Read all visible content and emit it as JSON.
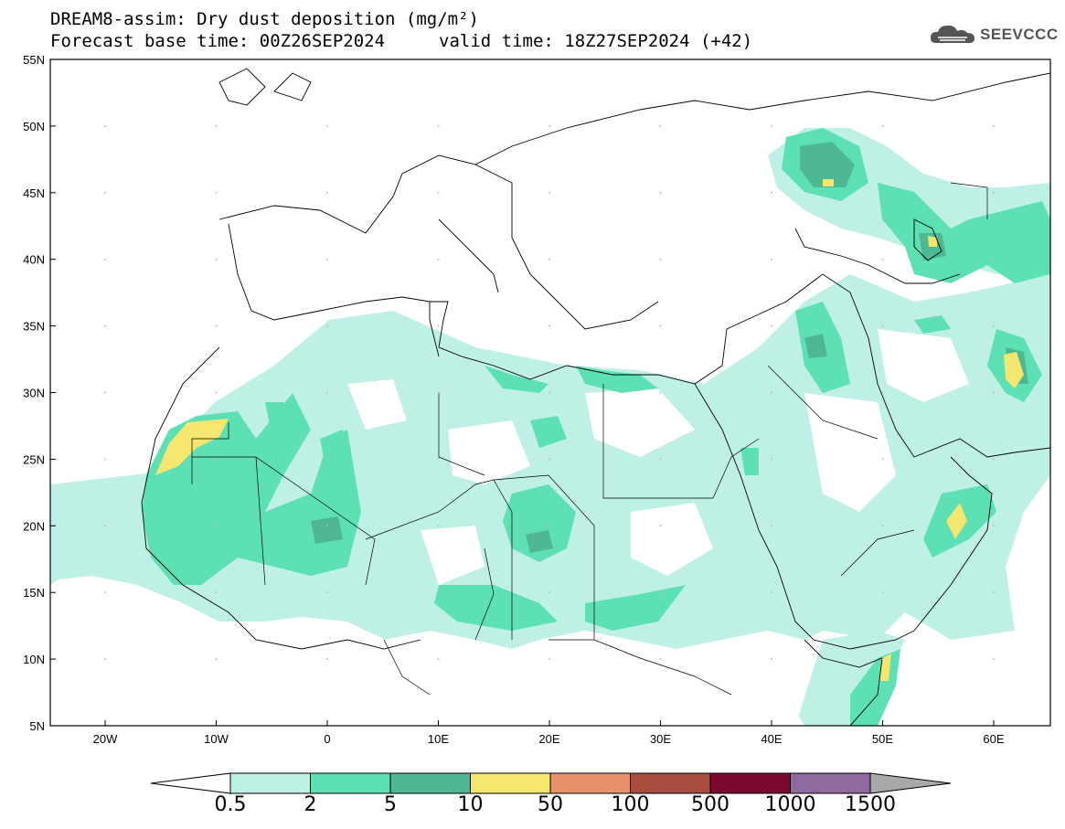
{
  "header": {
    "title": "DREAM8-assim: Dry dust deposition (mg/m²)",
    "base_time": "Forecast base time: 00Z26SEP2024",
    "valid_time": "valid time: 18Z27SEP2024 (+42)"
  },
  "logo": {
    "text": "SEEVCCC",
    "icon": "cloud-icon"
  },
  "map": {
    "lat_labels": [
      "55N",
      "50N",
      "45N",
      "40N",
      "35N",
      "30N",
      "25N",
      "20N",
      "15N",
      "10N",
      "5N"
    ],
    "lon_labels": [
      "20W",
      "10W",
      "0",
      "10E",
      "20E",
      "30E",
      "40E",
      "50E",
      "60E"
    ]
  },
  "colorbar": {
    "labels": [
      "0.5",
      "2",
      "5",
      "10",
      "50",
      "100",
      "500",
      "1000",
      "1500"
    ],
    "colors": [
      "#bff0e6",
      "#5ce0b4",
      "#4db891",
      "#f4e66e",
      "#e8916b",
      "#a84c3e",
      "#7a0a2e",
      "#8e6aa0",
      "#a9a9a9"
    ]
  }
}
